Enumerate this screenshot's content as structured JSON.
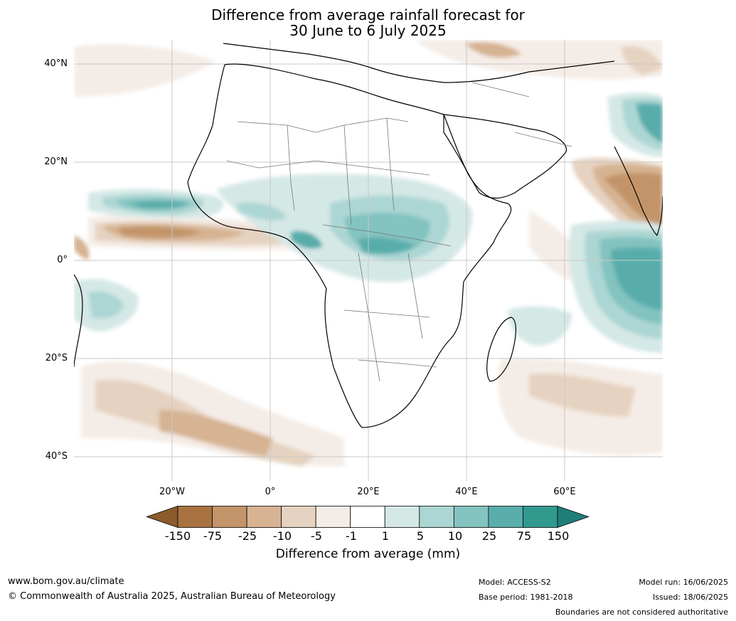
{
  "title": {
    "line1": "Difference from average rainfall forecast for",
    "line2": "30 June to 6 July 2025"
  },
  "map": {
    "region": "Africa",
    "lat_labels": [
      "40°N",
      "20°N",
      "0°",
      "20°S",
      "40°S"
    ],
    "lon_labels": [
      "20°W",
      "0°",
      "20°E",
      "40°E",
      "60°E"
    ]
  },
  "colorbar": {
    "title": "Difference from average (mm)",
    "tick_labels": [
      "-150",
      "-75",
      "-25",
      "-10",
      "-5",
      "-1",
      "1",
      "5",
      "10",
      "25",
      "75",
      "150"
    ],
    "colors": [
      "#8c5a2b",
      "#a97341",
      "#c39469",
      "#d6b392",
      "#e6d2c0",
      "#f4ece6",
      "#ffffff",
      "#d4e8e6",
      "#acd6d3",
      "#83c3c0",
      "#59adab",
      "#32998f",
      "#1f7f78"
    ]
  },
  "footer": {
    "website": "www.bom.gov.au/climate",
    "copyright": "© Commonwealth of Australia 2025, Australian Bureau of Meteorology",
    "model": "Model: ACCESS-S2",
    "base_period": "Base period: 1981-2018",
    "model_run": "Model run: 16/06/2025",
    "issued": "Issued: 18/06/2025",
    "boundaries_note": "Boundaries are not considered authoritative"
  }
}
